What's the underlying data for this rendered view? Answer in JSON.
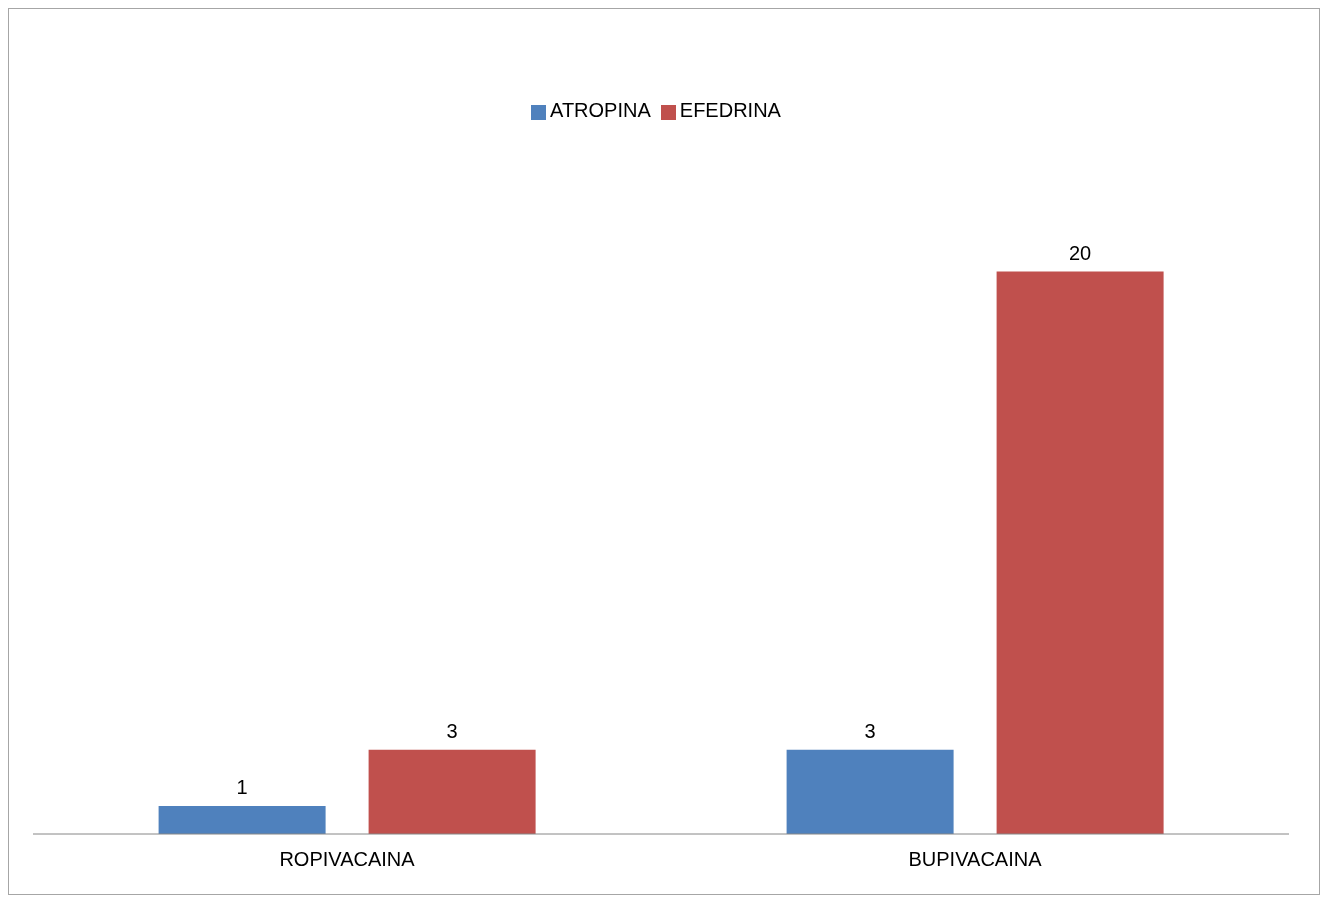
{
  "chart_data": {
    "type": "bar",
    "categories": [
      "ROPIVACAINA",
      "BUPIVACAINA"
    ],
    "series": [
      {
        "name": "ATROPINA",
        "color": "#4f81bd",
        "values": [
          1,
          3
        ]
      },
      {
        "name": "EFEDRINA",
        "color": "#c0504d",
        "values": [
          3,
          20
        ]
      }
    ],
    "data_labels": true,
    "legend": "top",
    "grid": false
  }
}
